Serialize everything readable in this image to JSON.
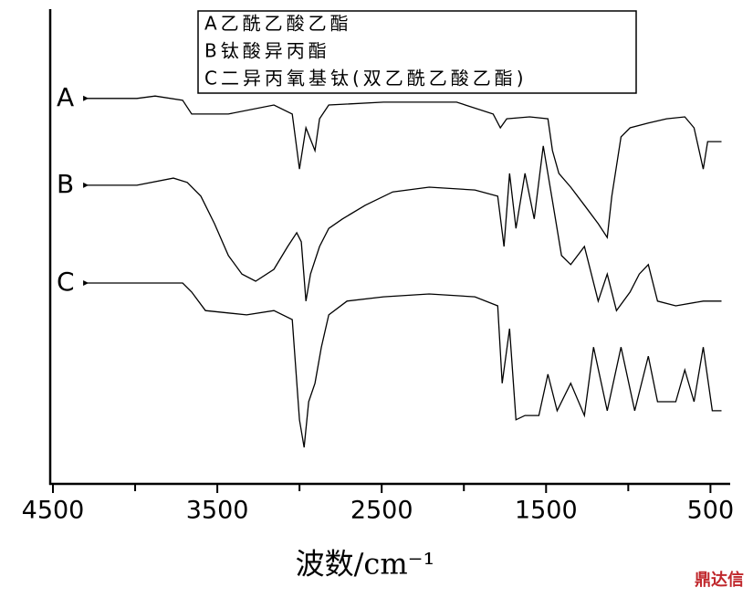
{
  "chart_data": {
    "type": "line",
    "xlabel": "波数/cm⁻¹",
    "watermark": "鼎达信",
    "xlim": [
      4500,
      380
    ],
    "ylim": [
      0,
      100
    ],
    "xticks": [
      4500,
      3500,
      2500,
      1500,
      500
    ],
    "xminorticks": [
      4000,
      3000,
      2000,
      1000
    ],
    "series": [
      {
        "name": "A乙酰乙酸乙酯",
        "label": "A",
        "color": "#000000",
        "x": [
          4294,
          3989,
          3878,
          3711,
          3656,
          3433,
          3156,
          3044,
          3000,
          2961,
          2906,
          2878,
          2822,
          2489,
          2044,
          1822,
          1778,
          1739,
          1600,
          1489,
          1461,
          1422,
          1350,
          1267,
          1183,
          1128,
          1100,
          1044,
          989,
          878,
          767,
          656,
          600,
          544,
          517,
          433
        ],
        "values": [
          81.2,
          81.2,
          81.7,
          80.8,
          77.9,
          77.9,
          79.8,
          77.9,
          66.3,
          75,
          70.2,
          76.9,
          79.8,
          80.4,
          80.4,
          77.9,
          75,
          76.9,
          77.3,
          76.9,
          70.2,
          65.4,
          62.5,
          58.7,
          54.8,
          51.9,
          60.6,
          73.1,
          75,
          76,
          76.9,
          77.3,
          75,
          66.3,
          72.1,
          72.1
        ]
      },
      {
        "name": "B钛酸异丙酯",
        "label": "B",
        "color": "#000000",
        "x": [
          4294,
          3989,
          3767,
          3683,
          3600,
          3517,
          3433,
          3350,
          3267,
          3156,
          3072,
          3017,
          2989,
          2961,
          2933,
          2878,
          2822,
          2739,
          2600,
          2433,
          2211,
          1933,
          1794,
          1756,
          1722,
          1683,
          1628,
          1572,
          1517,
          1461,
          1406,
          1350,
          1267,
          1183,
          1128,
          1072,
          989,
          933,
          878,
          822,
          711,
          544,
          433
        ],
        "values": [
          62.9,
          62.9,
          64.4,
          63.5,
          60.6,
          54.8,
          48.1,
          44.2,
          42.7,
          45.2,
          50,
          52.9,
          51,
          38.5,
          44.2,
          50,
          53.8,
          55.8,
          58.7,
          61.5,
          62.5,
          61.9,
          60.6,
          50,
          65.4,
          53.8,
          65.4,
          55.8,
          71.2,
          59.6,
          48.1,
          46.2,
          50,
          38.5,
          44.2,
          36.5,
          40.4,
          44.2,
          46.2,
          38.5,
          37.5,
          38.5,
          38.5
        ]
      },
      {
        "name": "C二异丙氧基钛(双乙酰乙酸乙酯)",
        "label": "C",
        "color": "#000000",
        "x": [
          4294,
          3711,
          3656,
          3572,
          3322,
          3156,
          3044,
          3000,
          2972,
          2944,
          2906,
          2867,
          2822,
          2711,
          2489,
          2211,
          1933,
          1794,
          1767,
          1722,
          1683,
          1628,
          1544,
          1489,
          1433,
          1350,
          1267,
          1211,
          1128,
          1044,
          961,
          878,
          822,
          711,
          656,
          600,
          544,
          489,
          433
        ],
        "values": [
          42.3,
          42.3,
          40.4,
          36.5,
          35.6,
          36.5,
          34.6,
          13.5,
          7.7,
          17.3,
          21.2,
          28.8,
          35.6,
          38.5,
          39.4,
          40,
          39.4,
          37.5,
          21.2,
          32.7,
          13.5,
          14.4,
          14.4,
          23.1,
          15.4,
          21.2,
          14.4,
          28.8,
          15.4,
          28.8,
          15.4,
          26.9,
          17.3,
          17.3,
          24,
          17.3,
          28.8,
          15.4,
          15.4
        ]
      }
    ]
  }
}
